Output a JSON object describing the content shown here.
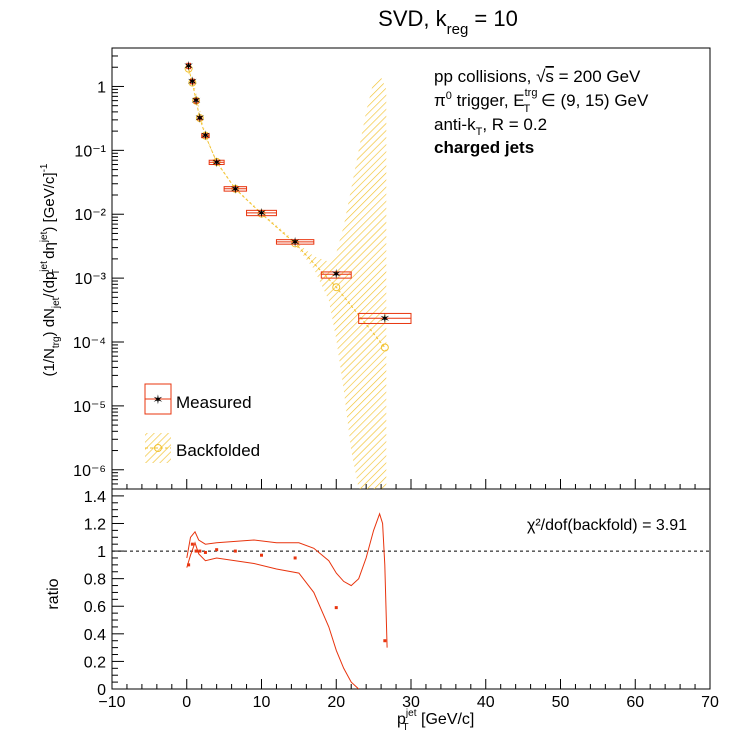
{
  "title_main": "SVD, k",
  "title_sub": "reg",
  "title_value": " = 10",
  "info": {
    "line1": "pp collisions, ",
    "line1_sqrt": "s",
    "line1_value": " = 200 GeV",
    "line2_a": "π",
    "line2_sup0": "0",
    "line2_b": " trigger, E",
    "line2_sup": "trg",
    "line2_sub": "T",
    "line2_c": " ∈ (9, 15) GeV",
    "line3_a": "anti-k",
    "line3_sub": "T",
    "line3_b": ", R = 0.2",
    "line4": "charged jets"
  },
  "legend": {
    "measured": "Measured",
    "backfolded": "Backfolded"
  },
  "ratio_annotation": "χ²/dof(backfold) = 3.91",
  "x_axis": {
    "label": "p",
    "label_sup": "jet",
    "label_sub": "T",
    "label_unit": " [GeV/c]",
    "ticks": [
      "−10",
      "0",
      "10",
      "20",
      "30",
      "40",
      "50",
      "60",
      "70"
    ]
  },
  "y_axis_top": {
    "label": "(1/N_trg) dN_jet/(dp_T^jet dη^jet) [GeV/c]^-1",
    "ticks": [
      "10⁻⁶",
      "10⁻⁵",
      "10⁻⁴",
      "10⁻³",
      "10⁻²",
      "10⁻¹",
      "1"
    ]
  },
  "y_axis_bottom": {
    "label": "ratio",
    "ticks": [
      "0",
      "0.2",
      "0.4",
      "0.6",
      "0.8",
      "1",
      "1.2",
      "1.4"
    ]
  },
  "colors": {
    "measured": "#e8340e",
    "backfolded": "#f2c230",
    "band": "#f2c230"
  },
  "chart_data": [
    {
      "type": "scatter",
      "panel": "top",
      "xlim": [
        -10,
        70
      ],
      "ylim": [
        5e-07,
        4
      ],
      "yscale": "log",
      "series": [
        {
          "name": "Measured",
          "x": [
            0.25,
            0.75,
            1.25,
            1.75,
            2.5,
            4,
            6.5,
            10,
            14.5,
            20,
            26.5
          ],
          "xerr": [
            0.25,
            0.25,
            0.25,
            0.25,
            0.5,
            1,
            1.5,
            2,
            2.5,
            2,
            3.5
          ],
          "y": [
            2.1,
            1.2,
            0.6,
            0.32,
            0.17,
            0.065,
            0.025,
            0.0105,
            0.0037,
            0.00115,
            0.000235
          ],
          "ylow": [
            1.9,
            1.1,
            0.55,
            0.3,
            0.158,
            0.06,
            0.023,
            0.0095,
            0.0034,
            0.001,
            0.000195
          ],
          "yhigh": [
            2.3,
            1.3,
            0.65,
            0.34,
            0.182,
            0.07,
            0.027,
            0.0115,
            0.004,
            0.00125,
            0.00028
          ]
        },
        {
          "name": "Backfolded",
          "x": [
            0.25,
            0.75,
            1.25,
            1.75,
            2.5,
            4,
            6.5,
            10,
            14.5,
            20,
            26.5
          ],
          "y": [
            1.9,
            1.15,
            0.6,
            0.32,
            0.17,
            0.066,
            0.025,
            0.0102,
            0.0035,
            0.00072,
            8.2e-05
          ]
        }
      ],
      "band": {
        "x": [
          0,
          1,
          2.5,
          4,
          6.5,
          10,
          14.5,
          17,
          19,
          20,
          21,
          22,
          23,
          24,
          25,
          26,
          26.7
        ],
        "low": [
          1.9,
          0.9,
          0.16,
          0.062,
          0.024,
          0.0098,
          0.0033,
          0.0014,
          0.00045,
          0.00011,
          1.8e-05,
          2e-06,
          5e-07,
          5e-07,
          5e-07,
          5e-07,
          5e-07
        ],
        "high": [
          2.2,
          1.1,
          0.18,
          0.068,
          0.026,
          0.0108,
          0.0038,
          0.0022,
          0.0018,
          0.0025,
          0.0065,
          0.025,
          0.1,
          0.4,
          1.2,
          1.4,
          0.9
        ]
      }
    },
    {
      "type": "line",
      "panel": "bottom",
      "xlim": [
        -10,
        70
      ],
      "ylim": [
        0,
        1.45
      ],
      "points": {
        "x": [
          0.25,
          0.75,
          1.25,
          1.75,
          2.5,
          4,
          6.5,
          10,
          14.5,
          20,
          26.5
        ],
        "y": [
          0.9,
          1.05,
          1.0,
          1.0,
          0.99,
          1.01,
          1.0,
          0.97,
          0.95,
          0.59,
          0.35
        ]
      },
      "band_upper": {
        "x": [
          0,
          0.5,
          1.1,
          1.6,
          2.5,
          4,
          6.5,
          9,
          12,
          15,
          17,
          19,
          20,
          21,
          22,
          23,
          24,
          25,
          25.8,
          26.2,
          26.5,
          26.8
        ],
        "y": [
          0.95,
          1.1,
          1.14,
          1.08,
          1.05,
          1.06,
          1.07,
          1.08,
          1.06,
          1.06,
          1.02,
          0.93,
          0.84,
          0.78,
          0.75,
          0.8,
          0.95,
          1.15,
          1.27,
          1.2,
          0.9,
          0.3
        ]
      },
      "band_lower": {
        "x": [
          0,
          0.5,
          1.1,
          1.6,
          2.5,
          4,
          6.5,
          9,
          12,
          15,
          17,
          19,
          20,
          21,
          22,
          23
        ],
        "y": [
          0.88,
          0.97,
          1.06,
          0.98,
          0.93,
          0.95,
          0.93,
          0.91,
          0.87,
          0.84,
          0.7,
          0.45,
          0.28,
          0.15,
          0.05,
          0
        ]
      },
      "reference": 1
    }
  ]
}
